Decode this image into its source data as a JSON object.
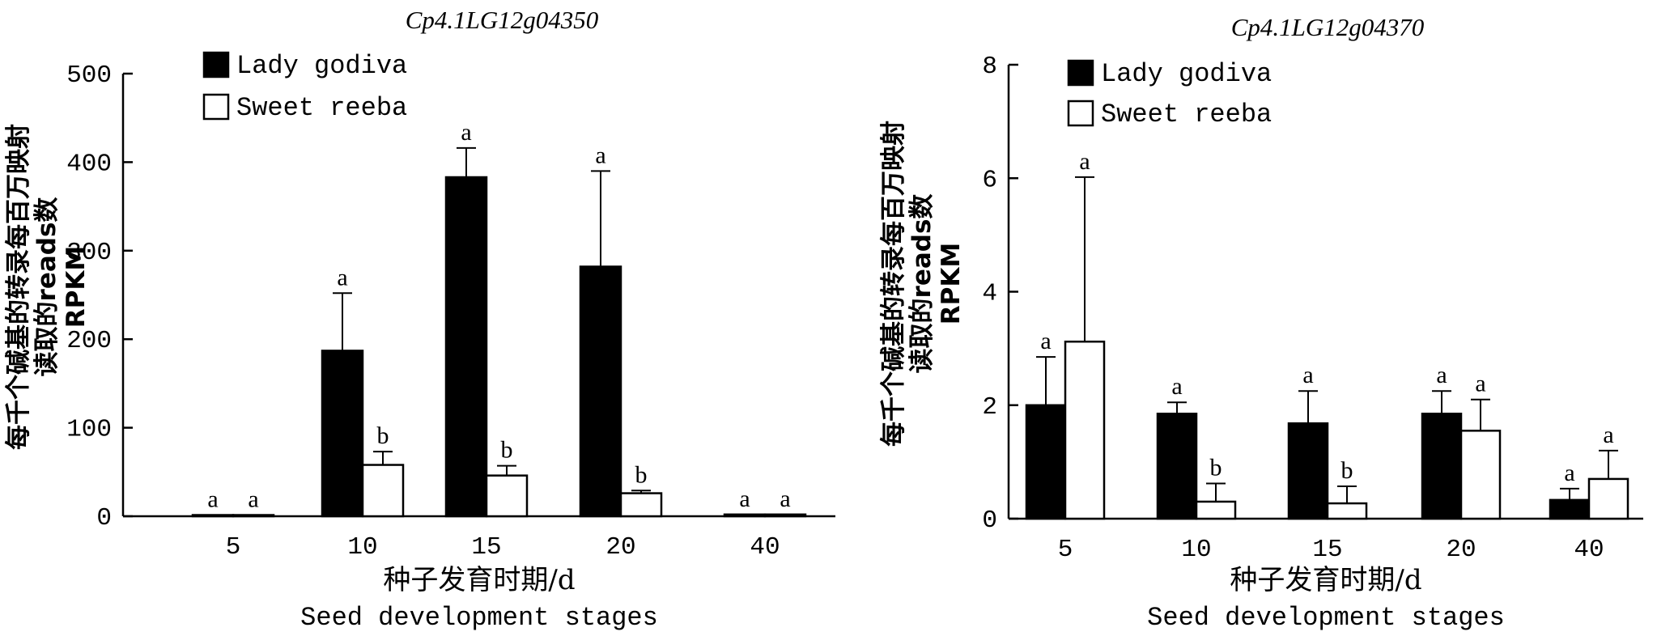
{
  "chart_data": [
    {
      "type": "bar",
      "title": "Cp4.1LG12g04350",
      "ylabel_lines": [
        "每千个碱基的转录每百万映射",
        "读取的reads数",
        "RPKM"
      ],
      "xlabel_lines": [
        "种子发育时期/d",
        "Seed development stages"
      ],
      "categories": [
        "5",
        "10",
        "15",
        "20",
        "40"
      ],
      "ylim": [
        0,
        500
      ],
      "yticks": [
        "0",
        "100",
        "200",
        "300",
        "400",
        "500"
      ],
      "legend_position": "top-left",
      "series": [
        {
          "name": "Lady godiva",
          "color": "#000000",
          "values": [
            1,
            187,
            383,
            282,
            2
          ],
          "errors": [
            0,
            65,
            33,
            108,
            0
          ],
          "letters": [
            "a",
            "a",
            "a",
            "a",
            "a"
          ]
        },
        {
          "name": "Sweet reeba",
          "color": "#ffffff",
          "values": [
            0,
            58,
            46,
            26,
            2
          ],
          "errors": [
            0,
            15,
            11,
            3,
            0
          ],
          "letters": [
            "a",
            "b",
            "b",
            "b",
            "a"
          ]
        }
      ]
    },
    {
      "type": "bar",
      "title": "Cp4.1LG12g04370",
      "ylabel_lines": [
        "每千个碱基的转录每百万映射",
        "读取的reads数",
        "RPKM"
      ],
      "xlabel_lines": [
        "种子发育时期/d",
        "Seed development stages"
      ],
      "categories": [
        "5",
        "10",
        "15",
        "20",
        "40"
      ],
      "ylim": [
        0,
        8
      ],
      "yticks": [
        "0",
        "2",
        "4",
        "6",
        "8"
      ],
      "legend_position": "top-left",
      "series": [
        {
          "name": "Lady godiva",
          "color": "#000000",
          "values": [
            2.0,
            1.85,
            1.68,
            1.85,
            0.33
          ],
          "errors": [
            0.85,
            0.2,
            0.57,
            0.4,
            0.2
          ],
          "letters": [
            "a",
            "a",
            "a",
            "a",
            "a"
          ]
        },
        {
          "name": "Sweet reeba",
          "color": "#ffffff",
          "values": [
            3.12,
            0.3,
            0.27,
            1.55,
            0.7
          ],
          "errors": [
            2.9,
            0.32,
            0.3,
            0.55,
            0.5
          ],
          "letters": [
            "a",
            "b",
            "b",
            "a",
            "a"
          ]
        }
      ]
    }
  ]
}
